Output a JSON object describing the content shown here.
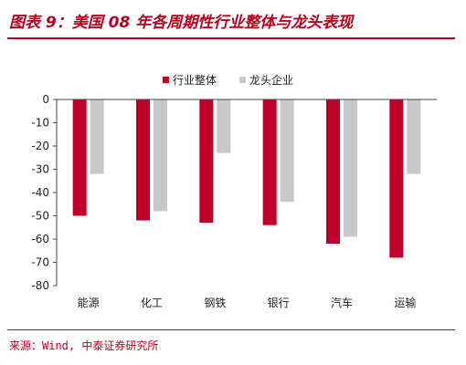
{
  "header": {
    "title": "图表 9：美国 08 年各周期性行业整体与龙头表现"
  },
  "footer": {
    "source": "来源：Wind, 中泰证券研究所"
  },
  "chart_data": {
    "type": "bar",
    "categories": [
      "能源",
      "化工",
      "钢铁",
      "银行",
      "汽车",
      "运输"
    ],
    "series": [
      {
        "name": "行业整体",
        "color": "#c0002a",
        "values": [
          -50,
          -52,
          -53,
          -54,
          -62,
          -68
        ]
      },
      {
        "name": "龙头企业",
        "color": "#c8c8c8",
        "values": [
          -32,
          -48,
          -23,
          -44,
          -59,
          -32
        ]
      }
    ],
    "ylim": [
      -80,
      0
    ],
    "yticks": [
      0,
      -10,
      -20,
      -30,
      -40,
      -50,
      -60,
      -70,
      -80
    ],
    "legend": "top-right",
    "grid": false
  }
}
